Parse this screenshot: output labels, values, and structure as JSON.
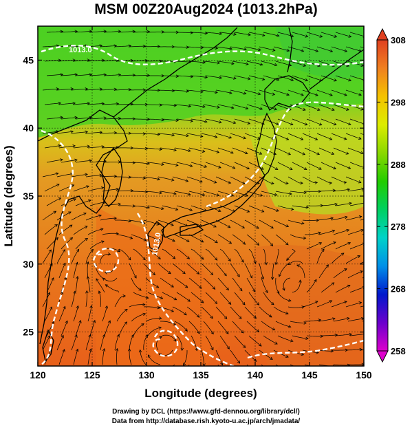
{
  "title": "MSM 00Z20Aug2024 (1013.2hPa)",
  "xlabel": "Longitude (degrees)",
  "ylabel": "Latitude  (degrees)",
  "x_ticks": [
    120,
    125,
    130,
    135,
    140,
    145,
    150
  ],
  "y_ticks": [
    25,
    30,
    35,
    40,
    45
  ],
  "colorbar": {
    "ticks": [
      258,
      268,
      278,
      288,
      298,
      308
    ],
    "min": 258,
    "max": 308,
    "colors": [
      "#dd00cc",
      "#6a00cc",
      "#0018cc",
      "#0090e8",
      "#00d2c8",
      "#00d060",
      "#22cc00",
      "#8ad800",
      "#dcec00",
      "#f4c200",
      "#f08020",
      "#e04020"
    ]
  },
  "contour_labels": [
    "1013.0",
    "1013.0"
  ],
  "map": {
    "lon_range": [
      120,
      150
    ],
    "lat_range": [
      22.5,
      47.5
    ],
    "variable_colors": {
      "north": "#44cc1c",
      "middle": "#e09820",
      "south": "#e86a1a",
      "east": "#a6dd22"
    }
  },
  "credits": {
    "line1": "Drawing by DCL (https://www.gfd-dennou.org/library/dcl/)",
    "line2": "Data from http://database.rish.kyoto-u.ac.jp/arch/jmadata/"
  }
}
